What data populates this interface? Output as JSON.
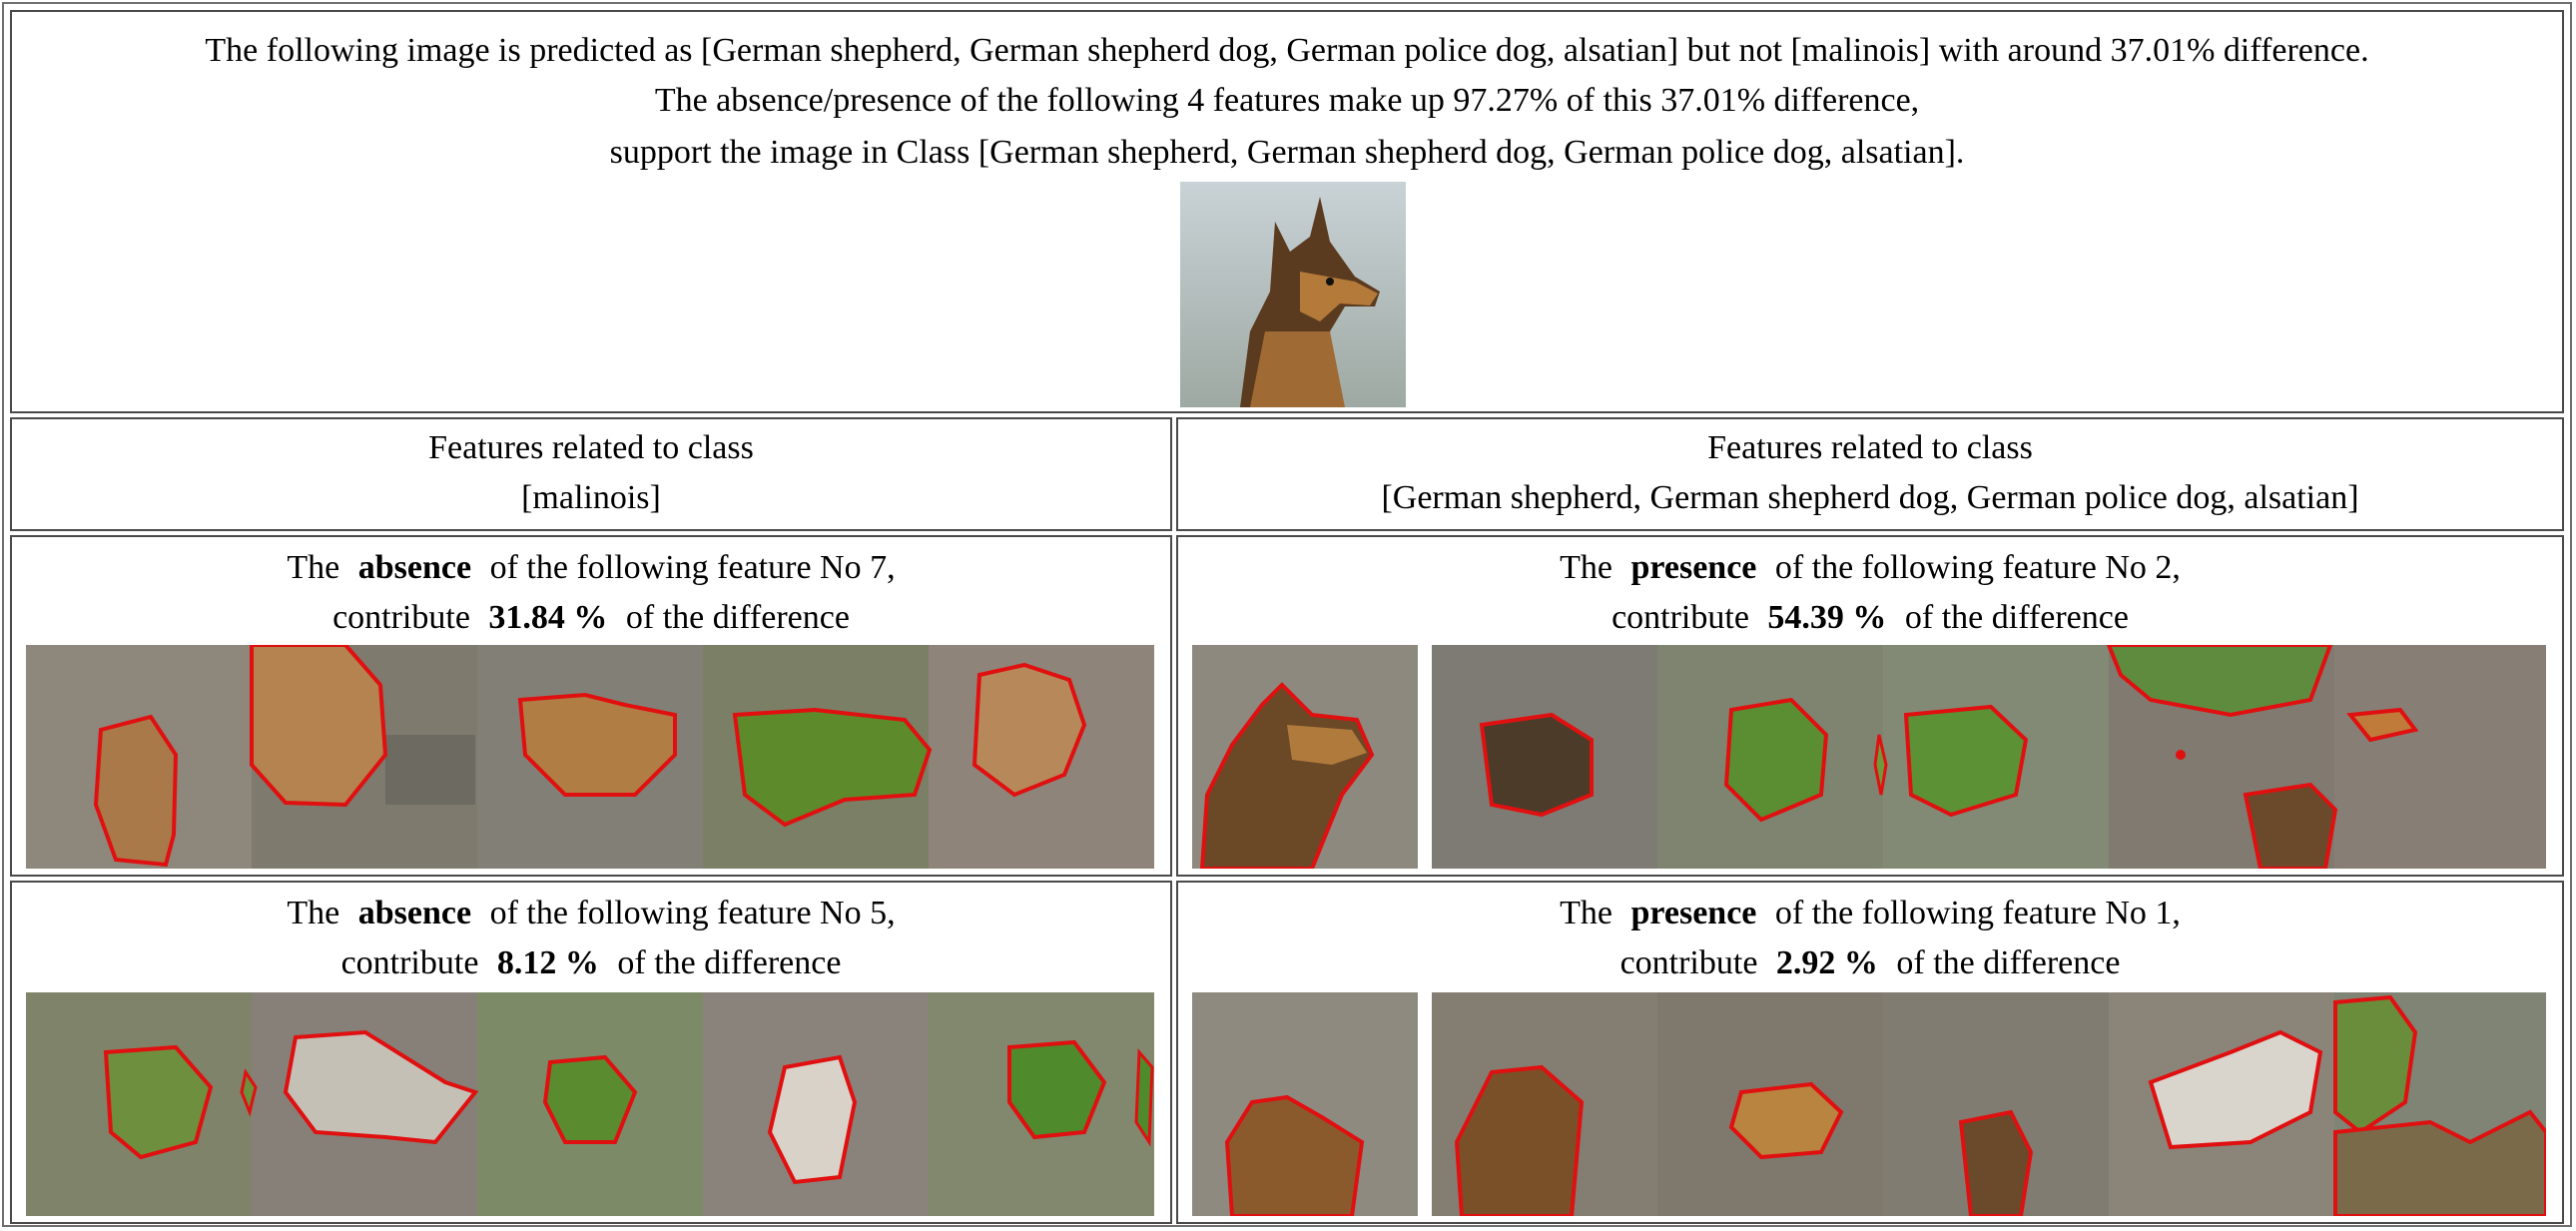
{
  "header": {
    "line1": "The following image is predicted as [German shepherd, German shepherd dog, German police dog, alsatian] but not [malinois] with around 37.01% difference.",
    "line2": "The absence/presence of the following 4 features make up 97.27% of this 37.01% difference,",
    "line3": "support the image in Class [German shepherd, German shepherd dog, German police dog, alsatian]."
  },
  "columns": {
    "left_title_1": "Features related to class",
    "left_title_2": "[malinois]",
    "right_title_1": "Features related to class",
    "right_title_2": "[German shepherd, German shepherd dog, German police dog, alsatian]"
  },
  "features": [
    {
      "prefix": "The",
      "kind": "absence",
      "suffix": "of the following feature No 7,",
      "contrib_prefix": "contribute",
      "percent": "31.84 %",
      "contrib_suffix": "of the difference"
    },
    {
      "prefix": "The",
      "kind": "presence",
      "suffix": "of the following feature No 2,",
      "contrib_prefix": "contribute",
      "percent": "54.39 %",
      "contrib_suffix": "of the difference"
    },
    {
      "prefix": "The",
      "kind": "absence",
      "suffix": "of the following feature No 5,",
      "contrib_prefix": "contribute",
      "percent": "8.12 %",
      "contrib_suffix": "of the difference"
    },
    {
      "prefix": "The",
      "kind": "presence",
      "suffix": "of the following feature No 1,",
      "contrib_prefix": "contribute",
      "percent": "2.92 %",
      "contrib_suffix": "of the difference"
    }
  ],
  "colors": {
    "outline": "#e01010",
    "border": "#4a4a4a",
    "muted_bg": "#8b8275",
    "grass": "#4f8a2c"
  },
  "icons": {
    "query_image": "german-shepherd-photo",
    "thumbnails": "masked-dog-photo-grid"
  }
}
